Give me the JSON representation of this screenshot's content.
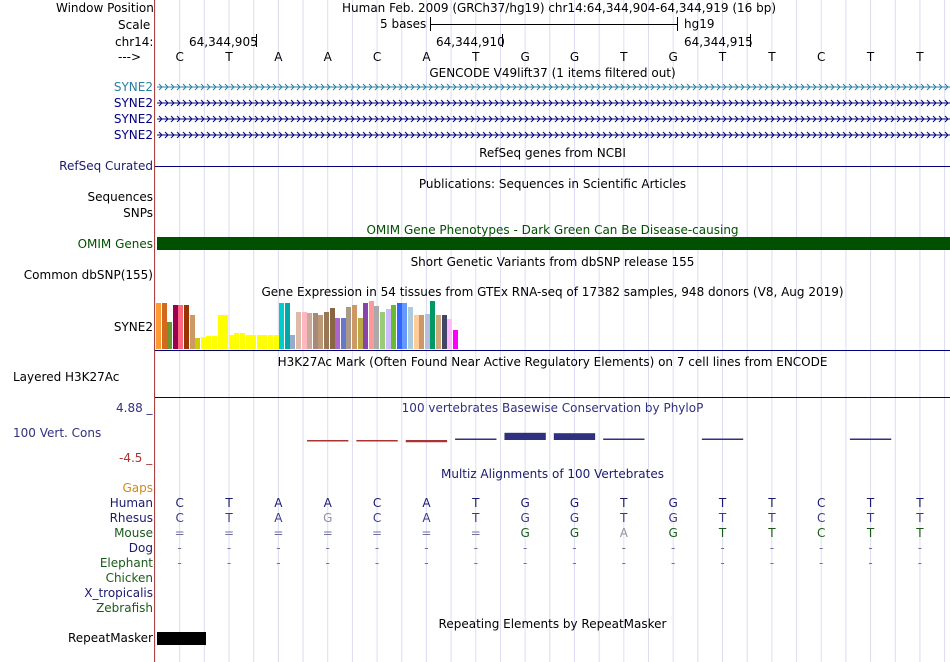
{
  "colors": {
    "label": "#000000",
    "gencode_first": "#2a7fa0",
    "gencode": "#000080",
    "refseq": "#1a1a6e",
    "omim": "#005000",
    "omim_title": "#005000",
    "conservation": "#303080",
    "scale_pos": "#303080",
    "scale_neg": "#aa3333",
    "gaps": "#d08a18",
    "human": "#1a1a6e",
    "mammal": "#3a3a8a",
    "bird": "#1a5a1a",
    "multiz_title": "#1a1a6e",
    "repeat": "#000000"
  },
  "header": {
    "window_position_label": "Window Position",
    "window_position_value": "Human Feb. 2009 (GRCh37/hg19)   chr14:64,344,904-64,344,919 (16 bp)",
    "scale_label": "Scale",
    "scale_bases": "5 bases",
    "scale_assembly": "hg19",
    "chrom_label": "chr14:",
    "chrom_pos": [
      "64,344,905",
      "64,344,910",
      "64,344,915"
    ],
    "strand_label": "--->"
  },
  "sequence": [
    "C",
    "T",
    "A",
    "A",
    "C",
    "A",
    "T",
    "G",
    "G",
    "T",
    "G",
    "T",
    "T",
    "C",
    "T",
    "T"
  ],
  "tracks": {
    "gencode_title": "GENCODE V49lift37 (1 items filtered out)",
    "gencode_items": [
      "SYNE2",
      "SYNE2",
      "SYNE2",
      "SYNE2"
    ],
    "refseq_label": "RefSeq Curated",
    "refseq_title": "RefSeq genes from NCBI",
    "pubs_title": "Publications: Sequences in Scientific Articles",
    "sequences_label": "Sequences",
    "snps_label": "SNPs",
    "omim_title": "OMIM Gene Phenotypes - Dark Green Can Be Disease-causing",
    "omim_label": "OMIM Genes",
    "dbsnp_title": "Short Genetic Variants from dbSNP release 155",
    "dbsnp_label": "Common dbSNP(155)",
    "gtex_title": "Gene Expression in 54 tissues from GTEx RNA-seq of 17382 samples, 948 donors (V8, Aug 2019)",
    "gtex_label": "SYNE2",
    "h3k27ac_title": "H3K27Ac Mark (Often Found Near Active Regulatory Elements) on 7 cell lines from ENCODE",
    "h3k27ac_label": "Layered H3K27Ac",
    "cons_title": "100 vertebrates Basewise Conservation by PhyloP",
    "cons_label": "100 Vert. Cons",
    "cons_max": "4.88 _",
    "cons_min": "-4.5 _",
    "multiz_title": "Multiz Alignments of 100 Vertebrates",
    "repeat_title": "Repeating Elements by RepeatMasker",
    "repeat_label": "RepeatMasker"
  },
  "gtex_colors": [
    "#ff9933",
    "#d2691e",
    "#669933",
    "#99004d",
    "#ff6680",
    "#993300",
    "#cc9966",
    "#cccc00",
    "#ffff00",
    "#ffff00",
    "#ffff00",
    "#ffff00",
    "#ffff00",
    "#ffff00",
    "#ffff00",
    "#ffff00",
    "#ffff00",
    "#ffff00",
    "#ffff00",
    "#ffff00",
    "#ffff00",
    "#ffff00",
    "#00cccc",
    "#00a8a8",
    "#99aacc",
    "#ddbbaa",
    "#ffb6c1",
    "#ccaa99",
    "#aa8877",
    "#bb9977",
    "#997755",
    "#886644",
    "#aa66cc",
    "#6677cc",
    "#aa9988",
    "#cc9966",
    "#bbaa44",
    "#8844aa",
    "#ff9999",
    "#aaaaaa",
    "#99cc77",
    "#ccbbff",
    "#66bb33",
    "#3366ff",
    "#6699ff",
    "#aaccdd",
    "#ffcc99",
    "#cc9966",
    "#bbbbdd",
    "#009966",
    "#ccaa77",
    "#444466",
    "#ffbbff",
    "#ff00ff"
  ],
  "gtex_values": [
    0.95,
    0.95,
    0.57,
    0.92,
    0.92,
    0.92,
    0.7,
    0.22,
    0.24,
    0.28,
    0.28,
    0.7,
    0.7,
    0.29,
    0.34,
    0.34,
    0.3,
    0.3,
    0.3,
    0.3,
    0.3,
    0.3,
    0.95,
    0.95,
    0.3,
    0.78,
    0.78,
    0.74,
    0.74,
    0.71,
    0.78,
    0.86,
    0.64,
    0.64,
    0.88,
    0.92,
    0.64,
    0.96,
    1.0,
    0.9,
    0.77,
    0.83,
    0.92,
    0.96,
    0.96,
    0.88,
    0.7,
    0.71,
    0.73,
    1.0,
    0.7,
    0.7,
    0.62,
    0.4
  ],
  "conservation_values": [
    0,
    0,
    0,
    -0.12,
    -0.08,
    -0.28,
    0.02,
    0.9,
    0.85,
    0.12,
    0,
    0.1,
    0,
    0,
    0.12,
    0
  ],
  "multiz": {
    "gaps_label": "Gaps",
    "rows": [
      {
        "name": "Human",
        "seq": [
          "C",
          "T",
          "A",
          "A",
          "C",
          "A",
          "T",
          "G",
          "G",
          "T",
          "G",
          "T",
          "T",
          "C",
          "T",
          "T"
        ]
      },
      {
        "name": "Rhesus",
        "seq": [
          "C",
          "T",
          "A",
          "G",
          "C",
          "A",
          "T",
          "G",
          "G",
          "T",
          "G",
          "T",
          "T",
          "C",
          "T",
          "T"
        ]
      },
      {
        "name": "Mouse",
        "seq": [
          "=",
          "=",
          "=",
          "=",
          "=",
          "=",
          "=",
          "G",
          "G",
          "A",
          "G",
          "T",
          "T",
          "C",
          "T",
          "T"
        ]
      },
      {
        "name": "Dog",
        "seq": [
          "-",
          "-",
          "-",
          "-",
          "-",
          "-",
          "-",
          "-",
          "-",
          "-",
          "-",
          "-",
          "-",
          "-",
          "-",
          "-"
        ]
      },
      {
        "name": "Elephant",
        "seq": [
          "-",
          "-",
          "-",
          "-",
          "-",
          "-",
          "-",
          "-",
          "-",
          "-",
          "-",
          "-",
          "-",
          "-",
          "-",
          "-"
        ]
      },
      {
        "name": "Chicken",
        "seq": []
      },
      {
        "name": "X_tropicalis",
        "seq": []
      },
      {
        "name": "Zebrafish",
        "seq": []
      }
    ]
  }
}
